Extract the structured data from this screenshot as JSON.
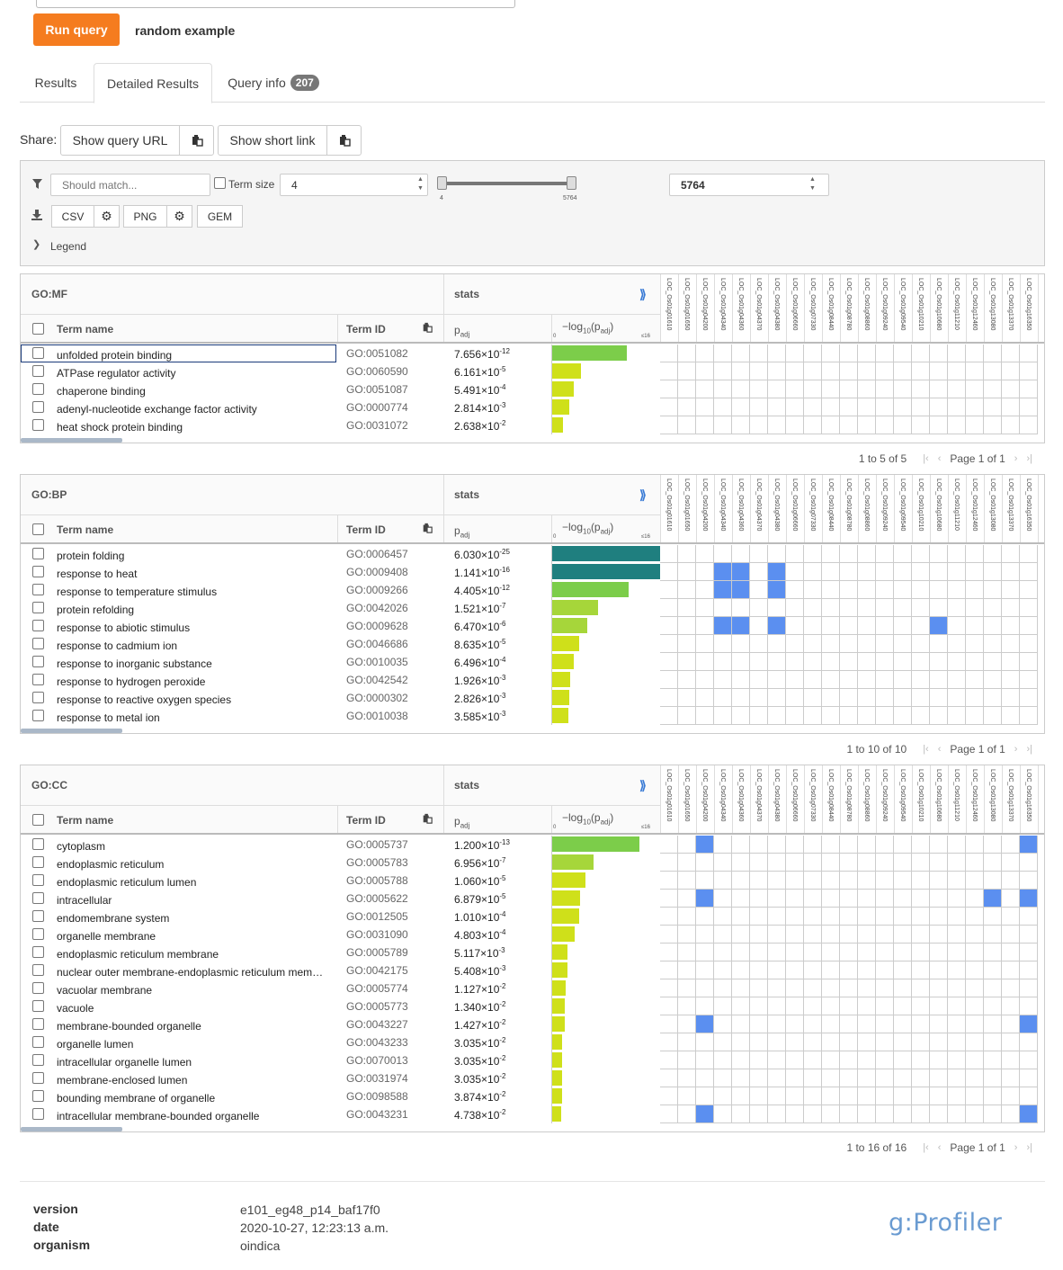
{
  "query": {
    "run_label": "Run query",
    "random_label": "random example"
  },
  "tabs": [
    {
      "label": "Results"
    },
    {
      "label": "Detailed Results"
    },
    {
      "label": "Query info",
      "badge": "207"
    }
  ],
  "share": {
    "label": "Share:",
    "show_url": "Show query URL",
    "short_link": "Show short link"
  },
  "filter": {
    "match_placeholder": "Should match...",
    "term_size_label": "Term size",
    "min_value": "4",
    "max_value": "5764",
    "slider_min_label": "4",
    "slider_max_label": "5764",
    "slider_min_fraction": 0.0,
    "slider_max_fraction": 1.0,
    "csv": "CSV",
    "png": "PNG",
    "gem": "GEM",
    "legend": "Legend"
  },
  "columns": {
    "term_name": "Term name",
    "term_id": "Term ID",
    "stats": "stats",
    "padj": "p",
    "padj_sub": "adj",
    "neglog": "−log",
    "neglog_sub": "10",
    "neglog_mid": "(p",
    "neglog_sub2": "adj",
    "neglog_end": ")",
    "scale_min": "0",
    "scale_max": "≤16",
    "expand": "⟫"
  },
  "genes": [
    "LOC_Os01g01610",
    "LOC_Os01g01650",
    "LOC_Os01g04200",
    "LOC_Os01g04340",
    "LOC_Os01g04360",
    "LOC_Os01g04370",
    "LOC_Os01g04380",
    "LOC_Os01g06660",
    "LOC_Os01g07330",
    "LOC_Os01g08440",
    "LOC_Os01g08780",
    "LOC_Os01g08860",
    "LOC_Os01g09240",
    "LOC_Os01g09540",
    "LOC_Os01g10210",
    "LOC_Os01g10680",
    "LOC_Os01g11210",
    "LOC_Os01g12460",
    "LOC_Os01g13080",
    "LOC_Os01g13370",
    "LOC_Os01g16350"
  ],
  "colors": {
    "accent": "#f57c1f",
    "hit": "#5b8ff0",
    "bar_max": "#1f7f7f",
    "bar_high": "#3dbf73",
    "bar_mid": "#7ccd4a",
    "bar_low": "#cfe01a"
  },
  "sections": [
    {
      "source": "GO:MF",
      "pager": {
        "range": "1 to 5 of 5",
        "page": "Page 1 of 1"
      },
      "terms": [
        {
          "name": "unfolded protein binding",
          "id": "GO:0051082",
          "p_mant": "7.656×10",
          "p_exp": "-12",
          "neglog": 11.12,
          "hits": []
        },
        {
          "name": "ATPase regulator activity",
          "id": "GO:0060590",
          "p_mant": "6.161×10",
          "p_exp": "-5",
          "neglog": 4.21,
          "hits": []
        },
        {
          "name": "chaperone binding",
          "id": "GO:0051087",
          "p_mant": "5.491×10",
          "p_exp": "-4",
          "neglog": 3.26,
          "hits": []
        },
        {
          "name": "adenyl-nucleotide exchange factor activity",
          "id": "GO:0000774",
          "p_mant": "2.814×10",
          "p_exp": "-3",
          "neglog": 2.55,
          "hits": []
        },
        {
          "name": "heat shock protein binding",
          "id": "GO:0031072",
          "p_mant": "2.638×10",
          "p_exp": "-2",
          "neglog": 1.58,
          "hits": []
        }
      ]
    },
    {
      "source": "GO:BP",
      "pager": {
        "range": "1 to 10 of 10",
        "page": "Page 1 of 1"
      },
      "terms": [
        {
          "name": "protein folding",
          "id": "GO:0006457",
          "p_mant": "6.030×10",
          "p_exp": "-25",
          "neglog": 16,
          "hits": []
        },
        {
          "name": "response to heat",
          "id": "GO:0009408",
          "p_mant": "1.141×10",
          "p_exp": "-16",
          "neglog": 16,
          "hits": [
            3,
            4,
            6
          ]
        },
        {
          "name": "response to temperature stimulus",
          "id": "GO:0009266",
          "p_mant": "4.405×10",
          "p_exp": "-12",
          "neglog": 11.36,
          "hits": [
            3,
            4,
            6
          ]
        },
        {
          "name": "protein refolding",
          "id": "GO:0042026",
          "p_mant": "1.521×10",
          "p_exp": "-7",
          "neglog": 6.82,
          "hits": []
        },
        {
          "name": "response to abiotic stimulus",
          "id": "GO:0009628",
          "p_mant": "6.470×10",
          "p_exp": "-6",
          "neglog": 5.19,
          "hits": [
            3,
            4,
            6,
            15
          ]
        },
        {
          "name": "response to cadmium ion",
          "id": "GO:0046686",
          "p_mant": "8.635×10",
          "p_exp": "-5",
          "neglog": 4.06,
          "hits": []
        },
        {
          "name": "response to inorganic substance",
          "id": "GO:0010035",
          "p_mant": "6.496×10",
          "p_exp": "-4",
          "neglog": 3.19,
          "hits": []
        },
        {
          "name": "response to hydrogen peroxide",
          "id": "GO:0042542",
          "p_mant": "1.926×10",
          "p_exp": "-3",
          "neglog": 2.72,
          "hits": []
        },
        {
          "name": "response to reactive oxygen species",
          "id": "GO:0000302",
          "p_mant": "2.826×10",
          "p_exp": "-3",
          "neglog": 2.55,
          "hits": []
        },
        {
          "name": "response to metal ion",
          "id": "GO:0010038",
          "p_mant": "3.585×10",
          "p_exp": "-3",
          "neglog": 2.45,
          "hits": []
        }
      ]
    },
    {
      "source": "GO:CC",
      "pager": {
        "range": "1 to 16 of 16",
        "page": "Page 1 of 1"
      },
      "terms": [
        {
          "name": "cytoplasm",
          "id": "GO:0005737",
          "p_mant": "1.200×10",
          "p_exp": "-13",
          "neglog": 12.92,
          "hits": [
            2,
            20
          ]
        },
        {
          "name": "endoplasmic reticulum",
          "id": "GO:0005783",
          "p_mant": "6.956×10",
          "p_exp": "-7",
          "neglog": 6.16,
          "hits": []
        },
        {
          "name": "endoplasmic reticulum lumen",
          "id": "GO:0005788",
          "p_mant": "1.060×10",
          "p_exp": "-5",
          "neglog": 4.97,
          "hits": []
        },
        {
          "name": "intracellular",
          "id": "GO:0005622",
          "p_mant": "6.879×10",
          "p_exp": "-5",
          "neglog": 4.16,
          "hits": [
            2,
            18,
            20
          ]
        },
        {
          "name": "endomembrane system",
          "id": "GO:0012505",
          "p_mant": "1.010×10",
          "p_exp": "-4",
          "neglog": 4.0,
          "hits": []
        },
        {
          "name": "organelle membrane",
          "id": "GO:0031090",
          "p_mant": "4.803×10",
          "p_exp": "-4",
          "neglog": 3.32,
          "hits": []
        },
        {
          "name": "endoplasmic reticulum membrane",
          "id": "GO:0005789",
          "p_mant": "5.117×10",
          "p_exp": "-3",
          "neglog": 2.29,
          "hits": []
        },
        {
          "name": "nuclear outer membrane-endoplasmic reticulum mem…",
          "id": "GO:0042175",
          "p_mant": "5.408×10",
          "p_exp": "-3",
          "neglog": 2.27,
          "hits": []
        },
        {
          "name": "vacuolar membrane",
          "id": "GO:0005774",
          "p_mant": "1.127×10",
          "p_exp": "-2",
          "neglog": 1.95,
          "hits": []
        },
        {
          "name": "vacuole",
          "id": "GO:0005773",
          "p_mant": "1.340×10",
          "p_exp": "-2",
          "neglog": 1.87,
          "hits": []
        },
        {
          "name": "membrane-bounded organelle",
          "id": "GO:0043227",
          "p_mant": "1.427×10",
          "p_exp": "-2",
          "neglog": 1.85,
          "hits": [
            2,
            20
          ]
        },
        {
          "name": "organelle lumen",
          "id": "GO:0043233",
          "p_mant": "3.035×10",
          "p_exp": "-2",
          "neglog": 1.52,
          "hits": []
        },
        {
          "name": "intracellular organelle lumen",
          "id": "GO:0070013",
          "p_mant": "3.035×10",
          "p_exp": "-2",
          "neglog": 1.52,
          "hits": []
        },
        {
          "name": "membrane-enclosed lumen",
          "id": "GO:0031974",
          "p_mant": "3.035×10",
          "p_exp": "-2",
          "neglog": 1.52,
          "hits": []
        },
        {
          "name": "bounding membrane of organelle",
          "id": "GO:0098588",
          "p_mant": "3.874×10",
          "p_exp": "-2",
          "neglog": 1.41,
          "hits": []
        },
        {
          "name": "intracellular membrane-bounded organelle",
          "id": "GO:0043231",
          "p_mant": "4.738×10",
          "p_exp": "-2",
          "neglog": 1.32,
          "hits": [
            2,
            20
          ]
        }
      ]
    }
  ],
  "footer": {
    "version_label": "version",
    "version": "e101_eg48_p14_baf17f0",
    "date_label": "date",
    "date": "2020-10-27, 12:23:13 a.m.",
    "organism_label": "organism",
    "organism": "oindica",
    "logo": "g:Profiler"
  }
}
